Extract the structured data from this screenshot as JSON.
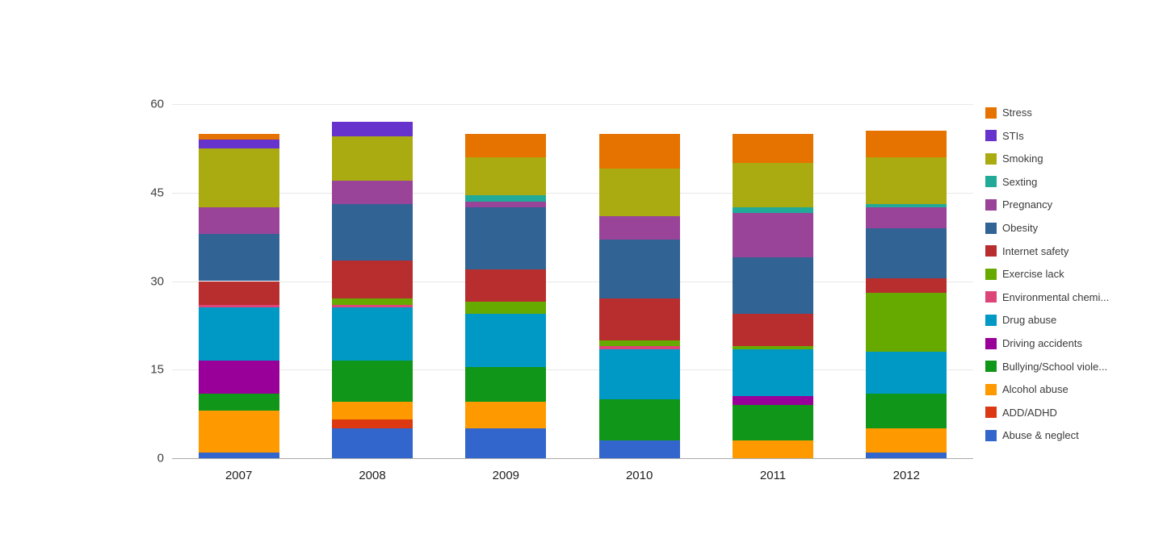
{
  "chart_data": {
    "type": "bar",
    "stacked": true,
    "title": "",
    "xlabel": "",
    "ylabel": "",
    "categories": [
      "2007",
      "2008",
      "2009",
      "2010",
      "2011",
      "2012"
    ],
    "ylim": [
      0,
      60
    ],
    "yticks": [
      0,
      15,
      30,
      45,
      60
    ],
    "grid": true,
    "legend_position": "right",
    "series_order": "bottom-to-top in stack; legend displays reverse order (top of legend = top of stack)",
    "series": [
      {
        "name": "Abuse & neglect",
        "color": "#3366cc",
        "values": [
          1,
          5,
          5,
          3,
          0,
          1
        ]
      },
      {
        "name": "ADD/ADHD",
        "color": "#dc3912",
        "values": [
          0,
          1.5,
          0,
          0,
          0,
          0
        ]
      },
      {
        "name": "Alcohol abuse",
        "color": "#ff9900",
        "values": [
          7,
          3,
          4.5,
          0,
          3,
          4
        ]
      },
      {
        "name": "Bullying/School viole...",
        "color": "#109618",
        "values": [
          3,
          7,
          6,
          7,
          6,
          6
        ]
      },
      {
        "name": "Driving accidents",
        "color": "#990099",
        "values": [
          5.5,
          0,
          0,
          0,
          1.5,
          0
        ]
      },
      {
        "name": "Drug abuse",
        "color": "#0099c6",
        "values": [
          9,
          9,
          9,
          8.5,
          8,
          7
        ]
      },
      {
        "name": "Environmental chemi...",
        "color": "#dd4477",
        "values": [
          0.5,
          0.5,
          0,
          0.5,
          0,
          0
        ]
      },
      {
        "name": "Exercise lack",
        "color": "#66aa00",
        "values": [
          0,
          1,
          2,
          1,
          0.5,
          10
        ]
      },
      {
        "name": "Internet safety",
        "color": "#b82e2e",
        "values": [
          4,
          6.5,
          5.5,
          7,
          5.5,
          2.5
        ]
      },
      {
        "name": "Obesity",
        "color": "#316395",
        "values": [
          8,
          9.5,
          10.5,
          10,
          9.5,
          8.5
        ]
      },
      {
        "name": "Pregnancy",
        "color": "#994499",
        "values": [
          4.5,
          4,
          1,
          4,
          7.5,
          3.5
        ]
      },
      {
        "name": "Sexting",
        "color": "#22aa99",
        "values": [
          0,
          0,
          1,
          0,
          1,
          0.5
        ]
      },
      {
        "name": "Smoking",
        "color": "#aaaa11",
        "values": [
          10,
          7.5,
          6.5,
          8,
          7.5,
          8
        ]
      },
      {
        "name": "STIs",
        "color": "#6633cc",
        "values": [
          1.5,
          2.5,
          0,
          0,
          0,
          0
        ]
      },
      {
        "name": "Stress",
        "color": "#e67300",
        "values": [
          1,
          0,
          4,
          6,
          5,
          4.5
        ]
      }
    ]
  }
}
